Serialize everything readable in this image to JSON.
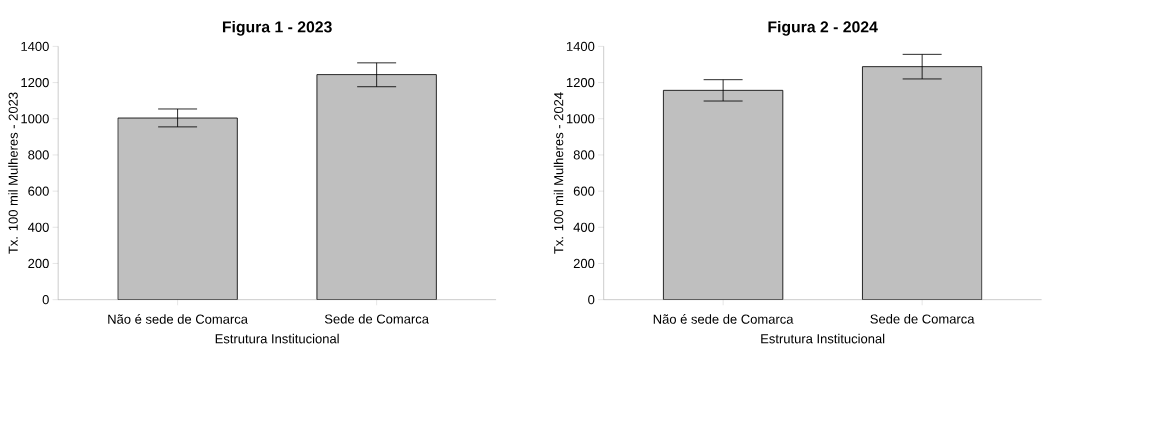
{
  "chart_data": [
    {
      "type": "bar",
      "title": "Figura 1 - 2023",
      "xlabel": "Estrutura Institucional",
      "ylabel": "Tx. 100 mil Mulheres - 2023",
      "categories": [
        "Não é sede de Comarca",
        "Sede de Comarca"
      ],
      "values": [
        1004,
        1244
      ],
      "errors": [
        [
          955,
          1054
        ],
        [
          1177,
          1309
        ]
      ],
      "color": "#bfbfbf",
      "ylim": [
        0,
        1400
      ],
      "yticks": [
        0,
        200,
        400,
        600,
        800,
        1000,
        1200,
        1400
      ],
      "grid": false
    },
    {
      "type": "bar",
      "title": "Figura 2 - 2024",
      "xlabel": "Estrutura Institucional",
      "ylabel": "Tx. 100 mil Mulheres - 2024",
      "categories": [
        "Não é sede de Comarca",
        "Sede de Comarca"
      ],
      "values": [
        1157,
        1288
      ],
      "errors": [
        [
          1098,
          1216
        ],
        [
          1220,
          1356
        ]
      ],
      "color": "#bfbfbf",
      "ylim": [
        0,
        1400
      ],
      "yticks": [
        0,
        200,
        400,
        600,
        800,
        1000,
        1200,
        1400
      ],
      "grid": false
    }
  ]
}
